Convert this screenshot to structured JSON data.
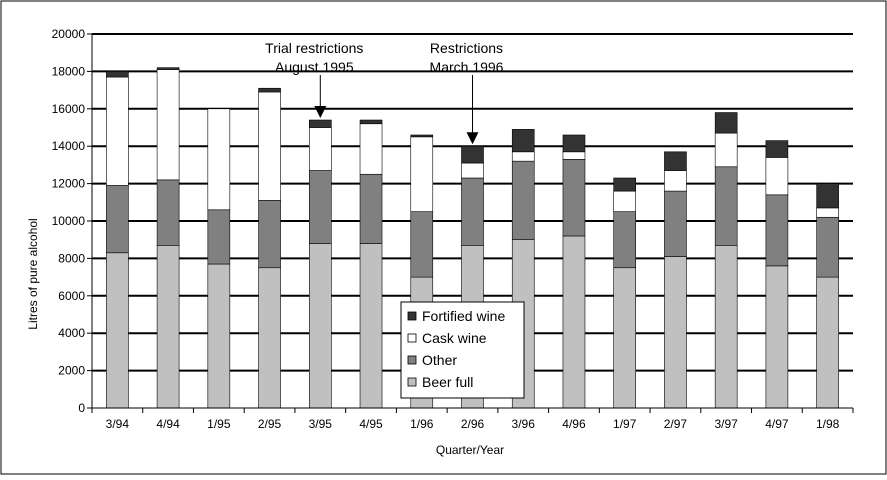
{
  "chart_data": {
    "type": "bar",
    "stacked": true,
    "title": "",
    "xlabel": "Quarter/Year",
    "ylabel": "Litres of pure alcohol",
    "ylim": [
      0,
      20000
    ],
    "yticks": [
      0,
      2000,
      4000,
      6000,
      8000,
      10000,
      12000,
      14000,
      16000,
      18000,
      20000
    ],
    "ytick_labels": [
      "0",
      "2000",
      "4000",
      "6000",
      "8000",
      "10000",
      "12000",
      "14000",
      "16000",
      "18000",
      "20000"
    ],
    "grid": "horizontal major gridlines",
    "categories": [
      "3/94",
      "4/94",
      "1/95",
      "2/95",
      "3/95",
      "4/95",
      "1/96",
      "2/96",
      "3/96",
      "4/96",
      "1/97",
      "2/97",
      "3/97",
      "4/97",
      "1/98"
    ],
    "series": [
      {
        "name": "Beer full",
        "color": "#c0c0c0",
        "values": [
          8300,
          8700,
          7700,
          7500,
          8800,
          8800,
          7000,
          8700,
          9000,
          9200,
          7500,
          8100,
          8700,
          7600,
          7000
        ]
      },
      {
        "name": "Other",
        "color": "#808080",
        "values": [
          3600,
          3500,
          2900,
          3600,
          3900,
          3700,
          3500,
          3600,
          4200,
          4100,
          3000,
          3500,
          4200,
          3800,
          3200
        ]
      },
      {
        "name": "Cask wine",
        "color": "#ffffff",
        "values": [
          5800,
          5900,
          5400,
          5800,
          2300,
          2700,
          4000,
          800,
          500,
          400,
          1100,
          1100,
          1800,
          2000,
          500
        ]
      },
      {
        "name": "Fortified wine",
        "color": "#333333",
        "values": [
          300,
          100,
          0,
          200,
          400,
          200,
          100,
          900,
          1200,
          900,
          700,
          1000,
          1100,
          900,
          1300
        ]
      }
    ],
    "legend": {
      "position": "center-bottom (inside plot)",
      "order": [
        "Fortified wine",
        "Cask wine",
        "Other",
        "Beer full"
      ]
    },
    "annotations": [
      {
        "lines": [
          "Trial restrictions",
          "August 1995"
        ],
        "category": "3/95",
        "points_to": "top of bar"
      },
      {
        "lines": [
          "Restrictions",
          "March 1996"
        ],
        "category": "2/96",
        "points_to": "top of bar"
      }
    ]
  }
}
